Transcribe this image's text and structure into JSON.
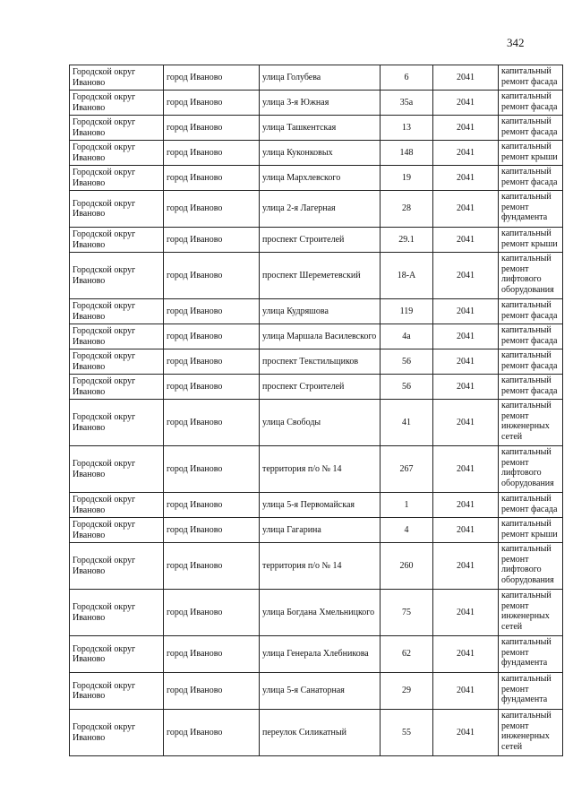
{
  "page_number": "342",
  "rows": [
    {
      "district": "Городской округ Иваново",
      "city": "город Иваново",
      "street": "улица Голубева",
      "house": "6",
      "year": "2041",
      "work": "капитальный ремонт фасада",
      "lines": 2
    },
    {
      "district": "Городской округ Иваново",
      "city": "город Иваново",
      "street": "улица 3-я Южная",
      "house": "35а",
      "year": "2041",
      "work": "капитальный ремонт фасада",
      "lines": 2
    },
    {
      "district": "Городской округ Иваново",
      "city": "город Иваново",
      "street": "улица Ташкентская",
      "house": "13",
      "year": "2041",
      "work": "капитальный ремонт фасада",
      "lines": 2
    },
    {
      "district": "Городской округ Иваново",
      "city": "город Иваново",
      "street": "улица Куконковых",
      "house": "148",
      "year": "2041",
      "work": "капитальный ремонт крыши",
      "lines": 2
    },
    {
      "district": "Городской округ Иваново",
      "city": "город Иваново",
      "street": "улица Мархлевского",
      "house": "19",
      "year": "2041",
      "work": "капитальный ремонт фасада",
      "lines": 2
    },
    {
      "district": "Городской округ Иваново",
      "city": "город Иваново",
      "street": "улица 2-я Лагерная",
      "house": "28",
      "year": "2041",
      "work": "капитальный ремонт фундамента",
      "lines": 3
    },
    {
      "district": "Городской округ Иваново",
      "city": "город Иваново",
      "street": "проспект Строителей",
      "house": "29.1",
      "year": "2041",
      "work": "капитальный ремонт крыши",
      "lines": 2
    },
    {
      "district": "Городской округ Иваново",
      "city": "город Иваново",
      "street": "проспект Шереметевский",
      "house": "18-А",
      "year": "2041",
      "work": "капитальный ремонт лифтового оборудования",
      "lines": 4
    },
    {
      "district": "Городской округ Иваново",
      "city": "город Иваново",
      "street": "улица Кудряшова",
      "house": "119",
      "year": "2041",
      "work": "капитальный ремонт фасада",
      "lines": 2
    },
    {
      "district": "Городской округ Иваново",
      "city": "город Иваново",
      "street": "улица Маршала Василевского",
      "house": "4а",
      "year": "2041",
      "work": "капитальный ремонт фасада",
      "lines": 2
    },
    {
      "district": "Городской округ Иваново",
      "city": "город Иваново",
      "street": "проспект Текстильщиков",
      "house": "56",
      "year": "2041",
      "work": "капитальный ремонт фасада",
      "lines": 2
    },
    {
      "district": "Городской округ Иваново",
      "city": "город Иваново",
      "street": "проспект Строителей",
      "house": "56",
      "year": "2041",
      "work": "капитальный ремонт фасада",
      "lines": 2
    },
    {
      "district": "Городской округ Иваново",
      "city": "город Иваново",
      "street": "улица Свободы",
      "house": "41",
      "year": "2041",
      "work": "капитальный ремонт инженерных сетей",
      "lines": 4
    },
    {
      "district": "Городской округ Иваново",
      "city": "город Иваново",
      "street": "территория п/о № 14",
      "house": "267",
      "year": "2041",
      "work": "капитальный ремонт лифтового оборудования",
      "lines": 4
    },
    {
      "district": "Городской округ Иваново",
      "city": "город Иваново",
      "street": "улица 5-я Первомайская",
      "house": "1",
      "year": "2041",
      "work": "капитальный ремонт фасада",
      "lines": 2
    },
    {
      "district": "Городской округ Иваново",
      "city": "город Иваново",
      "street": "улица Гагарина",
      "house": "4",
      "year": "2041",
      "work": "капитальный ремонт крыши",
      "lines": 2
    },
    {
      "district": "Городской округ Иваново",
      "city": "город Иваново",
      "street": "территория п/о № 14",
      "house": "260",
      "year": "2041",
      "work": "капитальный ремонт лифтового оборудования",
      "lines": 4
    },
    {
      "district": "Городской округ Иваново",
      "city": "город Иваново",
      "street": "улица Богдана Хмельницкого",
      "house": "75",
      "year": "2041",
      "work": "капитальный ремонт инженерных сетей",
      "lines": 4
    },
    {
      "district": "Городской округ Иваново",
      "city": "город Иваново",
      "street": "улица Генерала Хлебникова",
      "house": "62",
      "year": "2041",
      "work": "капитальный ремонт фундамента",
      "lines": 3
    },
    {
      "district": "Городской округ Иваново",
      "city": "город Иваново",
      "street": "улица 5-я Санаторная",
      "house": "29",
      "year": "2041",
      "work": "капитальный ремонт фундамента",
      "lines": 3
    },
    {
      "district": "Городской округ Иваново",
      "city": "город Иваново",
      "street": "переулок Силикатный",
      "house": "55",
      "year": "2041",
      "work": "капитальный ремонт инженерных сетей",
      "lines": 4
    }
  ]
}
